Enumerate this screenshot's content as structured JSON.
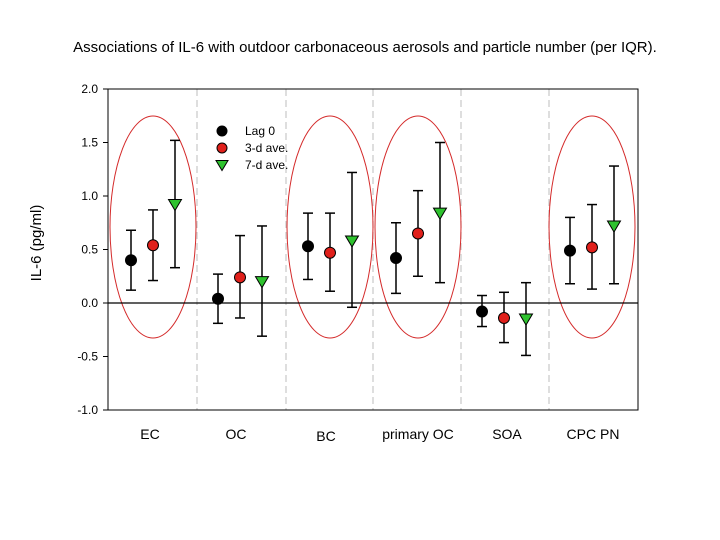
{
  "chart_data": {
    "type": "scatter",
    "title": "Associations of IL-6 with outdoor carbonaceous aerosols and particle number (per IQR).",
    "xlabel": "",
    "ylabel": "IL-6 (pg/ml)",
    "ylim": [
      -1.0,
      2.0
    ],
    "yticks": [
      "2.0",
      "1.5",
      "1.0",
      "0.5",
      "0.0",
      "-0.5",
      "-1.0"
    ],
    "categories": [
      "EC",
      "OC",
      "BC",
      "primary OC",
      "SOA",
      "CPC PN"
    ],
    "highlighted_categories": [
      "EC",
      "BC",
      "primary OC",
      "CPC PN"
    ],
    "series": [
      {
        "name": "Lag 0",
        "color": "#000000",
        "marker": "circle",
        "values": [
          0.4,
          0.04,
          0.53,
          0.42,
          -0.08,
          0.49
        ],
        "lower": [
          0.12,
          -0.19,
          0.22,
          0.09,
          -0.22,
          0.18
        ],
        "upper": [
          0.68,
          0.27,
          0.84,
          0.75,
          0.07,
          0.8
        ]
      },
      {
        "name": "3-d ave.",
        "color": "#e0201b",
        "marker": "circle",
        "values": [
          0.54,
          0.24,
          0.47,
          0.65,
          -0.14,
          0.52
        ],
        "lower": [
          0.21,
          -0.14,
          0.11,
          0.25,
          -0.37,
          0.13
        ],
        "upper": [
          0.87,
          0.63,
          0.84,
          1.05,
          0.1,
          0.92
        ]
      },
      {
        "name": "7-d ave.",
        "color": "#2ec22e",
        "marker": "triangle-down",
        "values": [
          0.92,
          0.2,
          0.58,
          0.84,
          -0.15,
          0.72
        ],
        "lower": [
          0.33,
          -0.31,
          -0.04,
          0.19,
          -0.49,
          0.18
        ],
        "upper": [
          1.52,
          0.72,
          1.22,
          1.5,
          0.19,
          1.28
        ]
      }
    ]
  }
}
